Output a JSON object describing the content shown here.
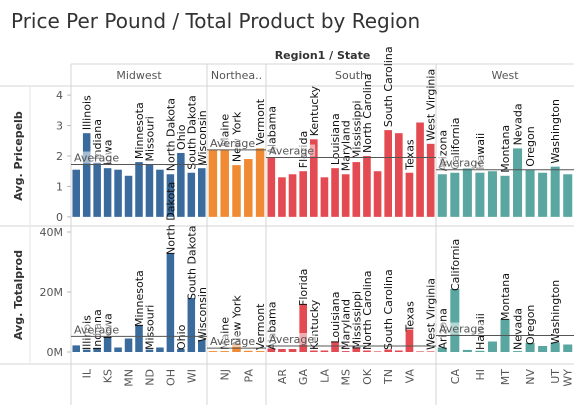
{
  "title": "Price Per Pound / Total Product by Region",
  "chart_data": {
    "type": "bar",
    "title": "Price Per Pound / Total Product by Region",
    "column_header": "Region1 / State",
    "reference_label": "Average",
    "panels": [
      {
        "ylabel": "Avg. Pricepelb",
        "ticks": [
          0,
          1,
          2,
          3,
          4
        ],
        "tick_labels": [
          "0",
          "1",
          "2",
          "3",
          "4"
        ],
        "ylim": [
          -0.3,
          4.3
        ]
      },
      {
        "ylabel": "Avg. Totalprod",
        "ticks": [
          0,
          20,
          40
        ],
        "tick_labels": [
          "0M",
          "20M",
          "40M"
        ],
        "ylim": [
          -4,
          42
        ]
      }
    ],
    "regions": [
      {
        "name": "Midwest",
        "color": "#3a6b9c",
        "avg_price": 1.72,
        "avg_prod": 5.2,
        "axis_states": [
          "IL",
          "KS",
          "MN",
          "ND",
          "OH",
          "WI"
        ],
        "states": [
          {
            "label": "",
            "price": 1.55,
            "prod": 2.2
          },
          {
            "label": "Illinois",
            "price": 2.75,
            "prod": 0.8
          },
          {
            "label": "Indiana",
            "price": 1.78,
            "prod": 1.2
          },
          {
            "label": "Iowa",
            "price": 1.6,
            "prod": 5.0
          },
          {
            "label": "",
            "price": 1.55,
            "prod": 1.5
          },
          {
            "label": "",
            "price": 1.35,
            "prod": 4.5
          },
          {
            "label": "Minnesota",
            "price": 1.8,
            "prod": 9.0
          },
          {
            "label": "Missouri",
            "price": 1.72,
            "prod": 0.8
          },
          {
            "label": "",
            "price": 1.55,
            "prod": 1.5
          },
          {
            "label": "North Dakota",
            "price": 1.4,
            "prod": 33.0
          },
          {
            "label": "Ohio",
            "price": 2.1,
            "prod": 1.0
          },
          {
            "label": "South Dakota",
            "price": 1.45,
            "prod": 18.0
          },
          {
            "label": "Wisconsin",
            "price": 1.6,
            "prod": 4.0
          }
        ]
      },
      {
        "name": "Northea..",
        "color": "#f08a35",
        "avg_price": 2.2,
        "avg_prod": 1.3,
        "axis_states": [
          "NJ",
          "PA"
        ],
        "states": [
          {
            "label": "",
            "price": 2.2,
            "prod": 0.3
          },
          {
            "label": "Maine",
            "price": 2.2,
            "prod": 0.3
          },
          {
            "label": "New York",
            "price": 1.7,
            "prod": 2.8
          },
          {
            "label": "",
            "price": 1.9,
            "prod": 0.4
          },
          {
            "label": "Vermont",
            "price": 2.25,
            "prod": 0.3
          }
        ]
      },
      {
        "name": "South",
        "color": "#e44a52",
        "avg_price": 1.95,
        "avg_prod": 2.0,
        "axis_states": [
          "AR",
          "GA",
          "LA",
          "MS",
          "OK",
          "TN",
          "VA"
        ],
        "states": [
          {
            "label": "Alabama",
            "price": 1.95,
            "prod": 1.2
          },
          {
            "label": "",
            "price": 1.3,
            "prod": 1.0
          },
          {
            "label": "",
            "price": 1.4,
            "prod": 1.0
          },
          {
            "label": "Florida",
            "price": 1.5,
            "prod": 16.0
          },
          {
            "label": "Kentucky",
            "price": 2.55,
            "prod": 0.5
          },
          {
            "label": "",
            "price": 1.3,
            "prod": 0.5
          },
          {
            "label": "Louisiana",
            "price": 1.6,
            "prod": 3.5
          },
          {
            "label": "Maryland",
            "price": 1.4,
            "prod": 0.3
          },
          {
            "label": "Mississippi",
            "price": 1.8,
            "prod": 1.5
          },
          {
            "label": "North Carolina",
            "price": 2.0,
            "prod": 0.5
          },
          {
            "label": "",
            "price": 1.5,
            "prod": 0.2
          },
          {
            "label": "South Carolina",
            "price": 2.85,
            "prod": 0.8
          },
          {
            "label": "",
            "price": 2.75,
            "prod": 0.5
          },
          {
            "label": "Texas",
            "price": 1.45,
            "prod": 7.5
          },
          {
            "label": "",
            "price": 3.1,
            "prod": 0.2
          },
          {
            "label": "West Virginia",
            "price": 2.4,
            "prod": 0.2
          }
        ]
      },
      {
        "name": "West",
        "color": "#5aa6a0",
        "avg_price": 1.55,
        "avg_prod": 5.5,
        "axis_states": [
          "CA",
          "HI",
          "MT",
          "NV",
          "UT",
          "WY"
        ],
        "states": [
          {
            "label": "Arizona",
            "price": 1.4,
            "prod": 1.5
          },
          {
            "label": "California",
            "price": 1.45,
            "prod": 21.0
          },
          {
            "label": "",
            "price": 1.6,
            "prod": 0.7
          },
          {
            "label": "Hawaii",
            "price": 1.45,
            "prod": 0.4
          },
          {
            "label": "",
            "price": 1.5,
            "prod": 3.5
          },
          {
            "label": "Montana",
            "price": 1.35,
            "prod": 11.0
          },
          {
            "label": "Nevada",
            "price": 2.25,
            "prod": 0.3
          },
          {
            "label": "Oregon",
            "price": 1.55,
            "prod": 3.0
          },
          {
            "label": "",
            "price": 1.45,
            "prod": 2.0
          },
          {
            "label": "Washington",
            "price": 1.65,
            "prod": 3.2
          },
          {
            "label": "",
            "price": 1.4,
            "prod": 2.5
          }
        ]
      }
    ]
  }
}
